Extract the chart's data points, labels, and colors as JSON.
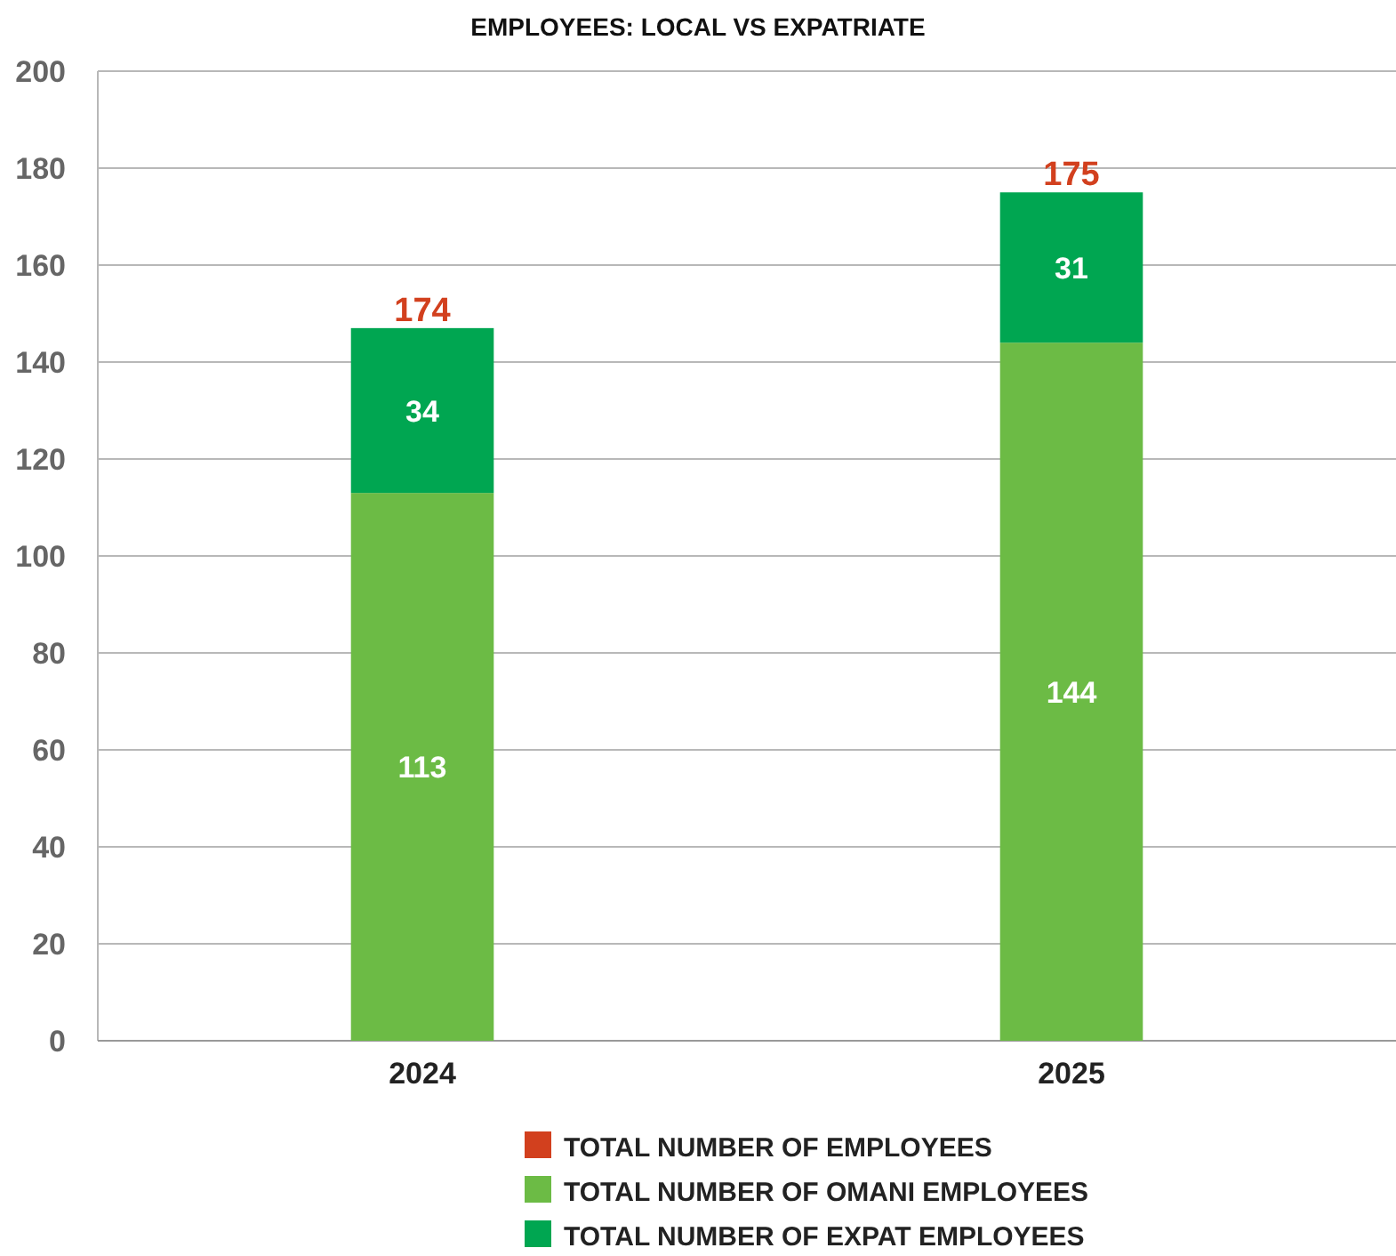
{
  "chart_data": {
    "type": "bar",
    "title": "EMPLOYEES: LOCAL VS EXPATRIATE",
    "categories": [
      "2024",
      "2025"
    ],
    "stacked": true,
    "ylim": [
      0,
      200
    ],
    "yticks": [
      0,
      20,
      40,
      60,
      80,
      100,
      120,
      140,
      160,
      180,
      200
    ],
    "grid": "y",
    "legend": "bottom",
    "data_labels": true,
    "annotations": [
      {
        "text": "174",
        "x": "2024",
        "y": 147
      },
      {
        "text": "175",
        "x": "2025",
        "y": 175
      }
    ],
    "series": [
      {
        "name": "TOTAL NUMBER OF EMPLOYEES",
        "color": "#d2401e",
        "values": [
          null,
          null
        ]
      },
      {
        "name": "TOTAL NUMBER OF OMANI EMPLOYEES",
        "color": "#6cbb45",
        "values": [
          113,
          144
        ]
      },
      {
        "name": "TOTAL NUMBER OF EXPAT EMPLOYEES",
        "color": "#00a651",
        "values": [
          34,
          31
        ]
      }
    ]
  }
}
